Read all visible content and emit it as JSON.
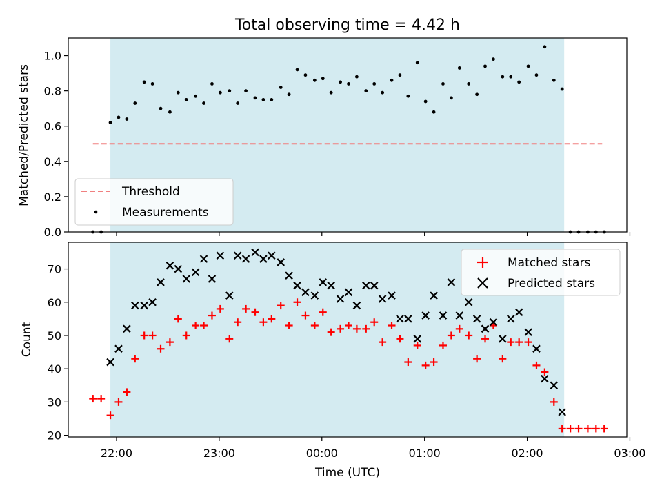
{
  "chart_data": {
    "title": "Total observing time = 4.42 h",
    "xlabel": "Time (UTC)",
    "x_ticks": [
      "22:00",
      "23:00",
      "00:00",
      "01:00",
      "02:00",
      "03:00"
    ],
    "xlim": [
      -0.47,
      4.97
    ],
    "x_unit": "hours after 22:00 UTC",
    "observing_window": [
      -0.06,
      4.36
    ],
    "shade_color": "#d4ebf1",
    "panels": [
      {
        "type": "scatter",
        "ylabel": "Matched/Predicted stars",
        "ylim": [
          0,
          1.1
        ],
        "y_ticks": [
          "0.0",
          "0.2",
          "0.4",
          "0.6",
          "0.8",
          "1.0"
        ],
        "y_tick_values": [
          0,
          0.2,
          0.4,
          0.6,
          0.8,
          1.0
        ],
        "threshold": {
          "name": "Threshold",
          "value": 0.5,
          "x_range": [
            -0.23,
            4.73
          ],
          "color": "#f08080"
        },
        "series": [
          {
            "name": "Measurements",
            "color": "#000000",
            "x": [
              -0.23,
              -0.15,
              -0.06,
              0.02,
              0.1,
              0.18,
              0.27,
              0.35,
              0.43,
              0.52,
              0.6,
              0.68,
              0.77,
              0.85,
              0.93,
              1.01,
              1.1,
              1.18,
              1.26,
              1.35,
              1.43,
              1.51,
              1.6,
              1.68,
              1.76,
              1.84,
              1.93,
              2.01,
              2.09,
              2.18,
              2.26,
              2.34,
              2.43,
              2.51,
              2.59,
              2.68,
              2.76,
              2.84,
              2.93,
              3.01,
              3.09,
              3.18,
              3.26,
              3.34,
              3.43,
              3.51,
              3.59,
              3.67,
              3.76,
              3.84,
              3.92,
              4.01,
              4.09,
              4.17,
              4.26,
              4.34,
              4.42,
              4.5,
              4.59,
              4.67,
              4.75
            ],
            "y": [
              0.0,
              0.0,
              0.62,
              0.65,
              0.64,
              0.73,
              0.85,
              0.84,
              0.7,
              0.68,
              0.79,
              0.75,
              0.77,
              0.73,
              0.84,
              0.79,
              0.8,
              0.73,
              0.8,
              0.76,
              0.75,
              0.75,
              0.82,
              0.78,
              0.92,
              0.89,
              0.86,
              0.87,
              0.79,
              0.85,
              0.84,
              0.88,
              0.8,
              0.84,
              0.79,
              0.86,
              0.89,
              0.77,
              0.96,
              0.74,
              0.68,
              0.84,
              0.76,
              0.93,
              0.84,
              0.78,
              0.94,
              0.98,
              0.88,
              0.88,
              0.85,
              0.94,
              0.89,
              1.05,
              0.86,
              0.81,
              0.0,
              0.0,
              0.0,
              0.0,
              0.0
            ]
          }
        ],
        "legend": {
          "location": "lower-left",
          "entries": [
            "Threshold",
            "Measurements"
          ]
        }
      },
      {
        "type": "scatter",
        "ylabel": "Count",
        "ylim": [
          19.5,
          78
        ],
        "y_ticks": [
          "20",
          "30",
          "40",
          "50",
          "60",
          "70"
        ],
        "y_tick_values": [
          20,
          30,
          40,
          50,
          60,
          70
        ],
        "series": [
          {
            "name": "Matched stars",
            "marker": "plus",
            "color": "#ff0000",
            "x": [
              -0.23,
              -0.15,
              -0.06,
              0.02,
              0.1,
              0.18,
              0.27,
              0.35,
              0.43,
              0.52,
              0.6,
              0.68,
              0.77,
              0.85,
              0.93,
              1.01,
              1.1,
              1.18,
              1.26,
              1.35,
              1.43,
              1.51,
              1.6,
              1.68,
              1.76,
              1.84,
              1.93,
              2.01,
              2.09,
              2.18,
              2.26,
              2.34,
              2.43,
              2.51,
              2.59,
              2.68,
              2.76,
              2.84,
              2.93,
              3.01,
              3.09,
              3.18,
              3.26,
              3.34,
              3.43,
              3.51,
              3.59,
              3.67,
              3.76,
              3.84,
              3.92,
              4.01,
              4.09,
              4.17,
              4.26,
              4.34,
              4.42,
              4.5,
              4.59,
              4.67,
              4.75
            ],
            "y": [
              31,
              31,
              26,
              30,
              33,
              43,
              50,
              50,
              46,
              48,
              55,
              50,
              53,
              53,
              56,
              58,
              49,
              54,
              58,
              57,
              54,
              55,
              59,
              53,
              60,
              56,
              53,
              57,
              51,
              52,
              53,
              52,
              52,
              54,
              48,
              53,
              49,
              42,
              47,
              41,
              42,
              47,
              50,
              52,
              50,
              43,
              49,
              53,
              43,
              48,
              48,
              48,
              41,
              39,
              30,
              22,
              22,
              22,
              22,
              22,
              22
            ]
          },
          {
            "name": "Predicted stars",
            "marker": "x",
            "color": "#000000",
            "x": [
              -0.06,
              0.02,
              0.1,
              0.18,
              0.27,
              0.35,
              0.43,
              0.52,
              0.6,
              0.68,
              0.77,
              0.85,
              0.93,
              1.01,
              1.1,
              1.18,
              1.26,
              1.35,
              1.43,
              1.51,
              1.6,
              1.68,
              1.76,
              1.84,
              1.93,
              2.01,
              2.09,
              2.18,
              2.26,
              2.34,
              2.43,
              2.51,
              2.59,
              2.68,
              2.76,
              2.84,
              2.93,
              3.01,
              3.09,
              3.18,
              3.26,
              3.34,
              3.43,
              3.51,
              3.59,
              3.67,
              3.76,
              3.84,
              3.92,
              4.01,
              4.09,
              4.17,
              4.26,
              4.34
            ],
            "y": [
              42,
              46,
              52,
              59,
              59,
              60,
              66,
              71,
              70,
              67,
              69,
              73,
              67,
              74,
              62,
              74,
              73,
              75,
              73,
              74,
              72,
              68,
              65,
              63,
              62,
              66,
              65,
              61,
              63,
              59,
              65,
              65,
              61,
              62,
              55,
              55,
              49,
              56,
              62,
              56,
              66,
              56,
              60,
              55,
              52,
              54,
              49,
              55,
              57,
              51,
              46,
              37,
              35,
              27
            ]
          }
        ],
        "legend": {
          "location": "upper-right",
          "entries": [
            "Matched stars",
            "Predicted stars"
          ]
        }
      }
    ]
  }
}
